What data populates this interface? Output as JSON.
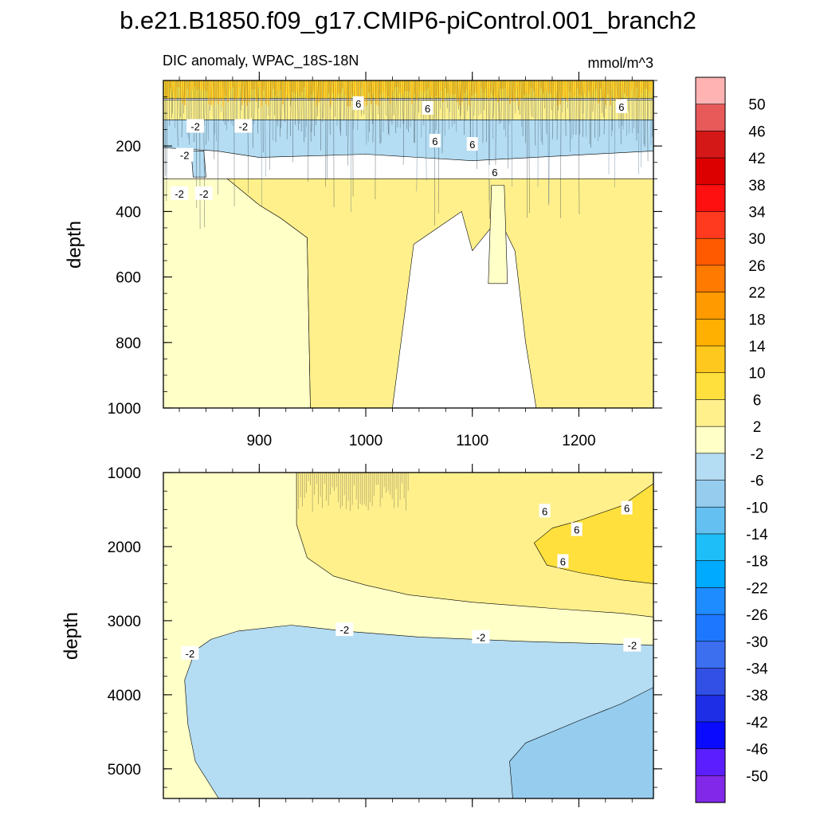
{
  "chart_data": {
    "type": "heatmap",
    "title": "b.e21.B1850.f09_g17.CMIP6-piControl.001_branch2",
    "subtitle_left": "DIC anomaly, WPAC_18S-18N",
    "units": "mmol/m^3",
    "xlabel": "",
    "ylabel": "depth",
    "xlim": [
      810,
      1270
    ],
    "x_ticks": [
      "900",
      "1000",
      "1100",
      "1200"
    ],
    "x_tick_values": [
      900,
      1000,
      1100,
      1200
    ],
    "panels": [
      {
        "name": "upper",
        "ylim": [
          0,
          1000
        ],
        "y_ticks": [
          "200",
          "400",
          "600",
          "800",
          "1000"
        ],
        "y_tick_values": [
          200,
          400,
          600,
          800,
          1000
        ],
        "regions": [
          {
            "level": "-2 to 2",
            "outline": [
              [
                810,
                300
              ],
              [
                870,
                300
              ],
              [
                900,
                380
              ],
              [
                920,
                420
              ],
              [
                945,
                480
              ],
              [
                948,
                1000
              ],
              [
                810,
                1000
              ]
            ]
          },
          {
            "level": "2 to 6",
            "outline": [
              [
                870,
                300
              ],
              [
                1270,
                300
              ],
              [
                1270,
                1000
              ],
              [
                1160,
                1000
              ],
              [
                1150,
                800
              ],
              [
                1140,
                520
              ],
              [
                1125,
                420
              ],
              [
                1100,
                520
              ],
              [
                1090,
                400
              ],
              [
                1045,
                500
              ],
              [
                1025,
                1000
              ],
              [
                948,
                1000
              ],
              [
                945,
                480
              ],
              [
                920,
                420
              ],
              [
                900,
                380
              ]
            ]
          },
          {
            "level": "-2 to 2",
            "outline": [
              [
                1118,
                320
              ],
              [
                1130,
                320
              ],
              [
                1133,
                620
              ],
              [
                1115,
                620
              ]
            ]
          },
          {
            "level": "2 to 6",
            "outline": [
              [
                810,
                60
              ],
              [
                1270,
                60
              ],
              [
                1270,
                140
              ],
              [
                810,
                140
              ]
            ]
          },
          {
            "level": "6 to 10",
            "outline": [
              [
                810,
                0
              ],
              [
                1270,
                0
              ],
              [
                1270,
                55
              ],
              [
                810,
                55
              ]
            ]
          },
          {
            "level": "-6 to -2",
            "outline": [
              [
                810,
                120
              ],
              [
                1270,
                120
              ],
              [
                1270,
                215
              ],
              [
                1100,
                245
              ],
              [
                1000,
                225
              ],
              [
                900,
                235
              ],
              [
                860,
                215
              ],
              [
                810,
                205
              ]
            ]
          },
          {
            "level": "-6 to -2",
            "outline": [
              [
                836,
                215
              ],
              [
                848,
                215
              ],
              [
                850,
                295
              ],
              [
                838,
                295
              ]
            ]
          }
        ],
        "labels": [
          {
            "text": "-2",
            "x": 840,
            "y": 140
          },
          {
            "text": "-2",
            "x": 885,
            "y": 140
          },
          {
            "text": "-2",
            "x": 830,
            "y": 228
          },
          {
            "text": "-2",
            "x": 825,
            "y": 345
          },
          {
            "text": "-2",
            "x": 848,
            "y": 345
          },
          {
            "text": "6",
            "x": 993,
            "y": 70
          },
          {
            "text": "6",
            "x": 1058,
            "y": 85
          },
          {
            "text": "6",
            "x": 1065,
            "y": 185
          },
          {
            "text": "6",
            "x": 1100,
            "y": 195
          },
          {
            "text": "6",
            "x": 1121,
            "y": 280
          },
          {
            "text": "6",
            "x": 1240,
            "y": 80
          }
        ]
      },
      {
        "name": "lower",
        "ylim": [
          1000,
          5400
        ],
        "y_ticks": [
          "1000",
          "2000",
          "3000",
          "4000",
          "5000"
        ],
        "y_tick_values": [
          1000,
          2000,
          3000,
          4000,
          5000
        ],
        "regions": [
          {
            "level": "-2 to 2",
            "outline": [
              [
                810,
                1000
              ],
              [
                1270,
                1000
              ],
              [
                1270,
                5400
              ],
              [
                810,
                5400
              ]
            ]
          },
          {
            "level": "2 to 6",
            "outline": [
              [
                935,
                1000
              ],
              [
                1270,
                1000
              ],
              [
                1270,
                2950
              ],
              [
                1240,
                2900
              ],
              [
                1180,
                2840
              ],
              [
                1100,
                2750
              ],
              [
                1040,
                2650
              ],
              [
                1000,
                2520
              ],
              [
                970,
                2400
              ],
              [
                945,
                2150
              ],
              [
                935,
                1700
              ]
            ]
          },
          {
            "level": "6 to 10",
            "outline": [
              [
                1158,
                1950
              ],
              [
                1175,
                1750
              ],
              [
                1200,
                1650
              ],
              [
                1240,
                1450
              ],
              [
                1270,
                1150
              ],
              [
                1270,
                2500
              ],
              [
                1240,
                2450
              ],
              [
                1200,
                2350
              ],
              [
                1170,
                2250
              ]
            ]
          },
          {
            "level": "-6 to -2",
            "outline": [
              [
                855,
                3250
              ],
              [
                880,
                3140
              ],
              [
                930,
                3060
              ],
              [
                980,
                3140
              ],
              [
                1050,
                3220
              ],
              [
                1150,
                3280
              ],
              [
                1270,
                3330
              ],
              [
                1270,
                5400
              ],
              [
                862,
                5400
              ],
              [
                840,
                4900
              ],
              [
                833,
                4400
              ],
              [
                830,
                3800
              ],
              [
                840,
                3400
              ]
            ]
          },
          {
            "level": "-10 to -6",
            "outline": [
              [
                1138,
                5400
              ],
              [
                1135,
                4900
              ],
              [
                1150,
                4650
              ],
              [
                1200,
                4350
              ],
              [
                1240,
                4120
              ],
              [
                1270,
                3900
              ],
              [
                1270,
                5400
              ]
            ]
          }
        ],
        "labels": [
          {
            "text": "6",
            "x": 1168,
            "y": 1520
          },
          {
            "text": "6",
            "x": 1198,
            "y": 1770
          },
          {
            "text": "6",
            "x": 1245,
            "y": 1480
          },
          {
            "text": "6",
            "x": 1185,
            "y": 2200
          },
          {
            "text": "-2",
            "x": 835,
            "y": 3440
          },
          {
            "text": "-2",
            "x": 980,
            "y": 3120
          },
          {
            "text": "-2",
            "x": 1108,
            "y": 3220
          },
          {
            "text": "-2",
            "x": 1250,
            "y": 3330
          }
        ]
      }
    ],
    "colorbar": {
      "labels": [
        "50",
        "46",
        "42",
        "38",
        "34",
        "30",
        "26",
        "22",
        "18",
        "14",
        "10",
        "6",
        "2",
        "-2",
        "-6",
        "-10",
        "-14",
        "-18",
        "-22",
        "-26",
        "-30",
        "-34",
        "-38",
        "-42",
        "-46",
        "-50"
      ],
      "colors": [
        "#ffb3b3",
        "#e85a5a",
        "#d41818",
        "#dc0000",
        "#ff1010",
        "#ff3a1e",
        "#ff5a00",
        "#ff7a00",
        "#ff9a00",
        "#ffb000",
        "#ffc81e",
        "#ffe03c",
        "#fff08c",
        "#ffffc8",
        "#b4dcf2",
        "#96cdee",
        "#64c0f0",
        "#1ebef8",
        "#00aaff",
        "#1e8cff",
        "#1e78ff",
        "#3c6ef0",
        "#3250e6",
        "#1e2ee6",
        "#0a0aff",
        "#5a1eff",
        "#8228e8"
      ]
    }
  },
  "level_colors": {
    "6 to 10": "#ffe03c",
    "2 to 6": "#fff08c",
    "-2 to 2": "#ffffc8",
    "-6 to -2": "#b4dcf2",
    "-10 to -6": "#96cdee"
  }
}
